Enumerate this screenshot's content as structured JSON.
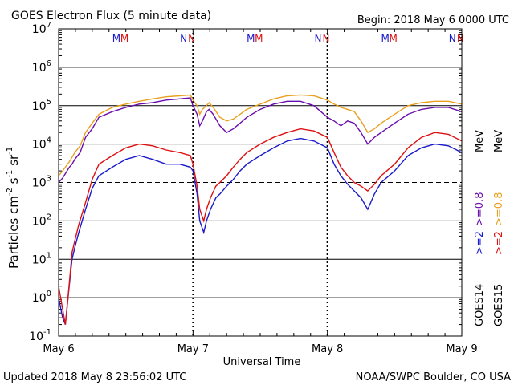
{
  "header": {
    "title": "GOES Electron Flux (5 minute data)",
    "begin": "Begin: 2018 May 6 0000 UTC"
  },
  "footer": {
    "updated": "Updated 2018 May  8 23:56:02 UTC",
    "credit": "NOAA/SWPC Boulder, CO USA"
  },
  "axes": {
    "xlabel": "Universal Time",
    "ylabel_parts": [
      "Particles cm",
      "-2",
      "s",
      "-1",
      "sr",
      "-1"
    ],
    "ylim": [
      0.1,
      10000000
    ],
    "yscale": "log",
    "yticks": [
      {
        "base": "10",
        "exp": "7",
        "value": 10000000
      },
      {
        "base": "10",
        "exp": "6",
        "value": 1000000
      },
      {
        "base": "10",
        "exp": "5",
        "value": 100000
      },
      {
        "base": "10",
        "exp": "4",
        "value": 10000
      },
      {
        "base": "10",
        "exp": "3",
        "value": 1000
      },
      {
        "base": "10",
        "exp": "2",
        "value": 100
      },
      {
        "base": "10",
        "exp": "1",
        "value": 10
      },
      {
        "base": "10",
        "exp": "0",
        "value": 1
      },
      {
        "base": "10",
        "exp": "-1",
        "value": 0.1
      }
    ],
    "xlim_days": [
      0,
      3
    ],
    "xticks": [
      {
        "label": "May 6",
        "day": 0
      },
      {
        "label": "May 7",
        "day": 1
      },
      {
        "label": "May 8",
        "day": 2
      },
      {
        "label": "May 9",
        "day": 3
      }
    ],
    "dashed_threshold": 1000
  },
  "markers": {
    "M_color": "#1a1acc",
    "M2_color": "#dd1111",
    "items": [
      {
        "label": "M",
        "day": 0.43,
        "color": "#1a1acc"
      },
      {
        "label": "M",
        "day": 0.49,
        "color": "#dd1111"
      },
      {
        "label": "N",
        "day": 0.93,
        "color": "#1a1acc"
      },
      {
        "label": "N",
        "day": 0.99,
        "color": "#dd1111"
      },
      {
        "label": "M",
        "day": 1.43,
        "color": "#1a1acc"
      },
      {
        "label": "M",
        "day": 1.49,
        "color": "#dd1111"
      },
      {
        "label": "N",
        "day": 1.93,
        "color": "#1a1acc"
      },
      {
        "label": "N",
        "day": 1.99,
        "color": "#dd1111"
      },
      {
        "label": "M",
        "day": 2.43,
        "color": "#1a1acc"
      },
      {
        "label": "M",
        "day": 2.49,
        "color": "#dd1111"
      },
      {
        "label": "N",
        "day": 2.93,
        "color": "#1a1acc"
      },
      {
        "label": "N",
        "day": 2.99,
        "color": "#dd1111"
      }
    ]
  },
  "legend": {
    "goes14": {
      "label": "GOES14",
      "entries": [
        {
          "label": ">=2",
          "color": "#1a1acc"
        },
        {
          "label": ">=0.8",
          "color": "#6a0dad"
        }
      ]
    },
    "goes15": {
      "label": "GOES15",
      "entries": [
        {
          "label": ">=2",
          "color": "#dd1111"
        },
        {
          "label": ">=0.8",
          "color": "#e8a020"
        }
      ]
    },
    "unit": "MeV"
  },
  "chart_data": {
    "type": "line",
    "x_unit": "days since 2018 May 6 0000 UTC",
    "series": [
      {
        "name": "GOES14 >=0.8 MeV",
        "color": "#6a0dad",
        "points": [
          [
            0.0,
            1000
          ],
          [
            0.03,
            1300
          ],
          [
            0.08,
            2500
          ],
          [
            0.1,
            3000
          ],
          [
            0.12,
            4000
          ],
          [
            0.16,
            6000
          ],
          [
            0.2,
            15000
          ],
          [
            0.25,
            25000
          ],
          [
            0.3,
            50000
          ],
          [
            0.4,
            70000
          ],
          [
            0.5,
            90000
          ],
          [
            0.6,
            110000
          ],
          [
            0.7,
            120000
          ],
          [
            0.8,
            140000
          ],
          [
            0.9,
            150000
          ],
          [
            0.98,
            160000
          ],
          [
            1.0,
            100000
          ],
          [
            1.03,
            60000
          ],
          [
            1.05,
            30000
          ],
          [
            1.07,
            40000
          ],
          [
            1.1,
            70000
          ],
          [
            1.12,
            80000
          ],
          [
            1.15,
            60000
          ],
          [
            1.2,
            30000
          ],
          [
            1.25,
            20000
          ],
          [
            1.3,
            25000
          ],
          [
            1.35,
            35000
          ],
          [
            1.4,
            50000
          ],
          [
            1.5,
            80000
          ],
          [
            1.6,
            110000
          ],
          [
            1.7,
            130000
          ],
          [
            1.8,
            130000
          ],
          [
            1.9,
            100000
          ],
          [
            2.0,
            50000
          ],
          [
            2.05,
            40000
          ],
          [
            2.1,
            30000
          ],
          [
            2.15,
            40000
          ],
          [
            2.2,
            35000
          ],
          [
            2.25,
            20000
          ],
          [
            2.3,
            10000
          ],
          [
            2.35,
            15000
          ],
          [
            2.4,
            20000
          ],
          [
            2.5,
            35000
          ],
          [
            2.6,
            60000
          ],
          [
            2.7,
            80000
          ],
          [
            2.8,
            90000
          ],
          [
            2.9,
            90000
          ],
          [
            3.0,
            70000
          ]
        ]
      },
      {
        "name": "GOES15 >=0.8 MeV",
        "color": "#e8a020",
        "points": [
          [
            0.0,
            1500
          ],
          [
            0.03,
            2000
          ],
          [
            0.08,
            3500
          ],
          [
            0.1,
            4500
          ],
          [
            0.12,
            6000
          ],
          [
            0.16,
            9000
          ],
          [
            0.2,
            20000
          ],
          [
            0.25,
            35000
          ],
          [
            0.3,
            60000
          ],
          [
            0.4,
            90000
          ],
          [
            0.5,
            110000
          ],
          [
            0.6,
            130000
          ],
          [
            0.7,
            150000
          ],
          [
            0.8,
            170000
          ],
          [
            0.9,
            180000
          ],
          [
            0.98,
            190000
          ],
          [
            1.0,
            140000
          ],
          [
            1.03,
            100000
          ],
          [
            1.05,
            60000
          ],
          [
            1.07,
            80000
          ],
          [
            1.1,
            100000
          ],
          [
            1.12,
            120000
          ],
          [
            1.15,
            90000
          ],
          [
            1.2,
            50000
          ],
          [
            1.25,
            40000
          ],
          [
            1.3,
            45000
          ],
          [
            1.35,
            60000
          ],
          [
            1.4,
            80000
          ],
          [
            1.5,
            110000
          ],
          [
            1.6,
            150000
          ],
          [
            1.7,
            180000
          ],
          [
            1.8,
            190000
          ],
          [
            1.9,
            180000
          ],
          [
            2.0,
            140000
          ],
          [
            2.05,
            110000
          ],
          [
            2.1,
            90000
          ],
          [
            2.15,
            80000
          ],
          [
            2.2,
            70000
          ],
          [
            2.25,
            40000
          ],
          [
            2.3,
            20000
          ],
          [
            2.35,
            25000
          ],
          [
            2.4,
            35000
          ],
          [
            2.5,
            60000
          ],
          [
            2.6,
            100000
          ],
          [
            2.7,
            120000
          ],
          [
            2.8,
            130000
          ],
          [
            2.9,
            130000
          ],
          [
            3.0,
            110000
          ]
        ]
      },
      {
        "name": "GOES14 >=2 MeV",
        "color": "#1a1acc",
        "points": [
          [
            0.0,
            1
          ],
          [
            0.03,
            0.3
          ],
          [
            0.05,
            0.2
          ],
          [
            0.07,
            1
          ],
          [
            0.1,
            10
          ],
          [
            0.12,
            20
          ],
          [
            0.15,
            50
          ],
          [
            0.2,
            200
          ],
          [
            0.25,
            700
          ],
          [
            0.3,
            1500
          ],
          [
            0.4,
            2500
          ],
          [
            0.5,
            4000
          ],
          [
            0.6,
            5000
          ],
          [
            0.7,
            4000
          ],
          [
            0.8,
            3000
          ],
          [
            0.9,
            3000
          ],
          [
            0.98,
            2500
          ],
          [
            1.0,
            2000
          ],
          [
            1.03,
            500
          ],
          [
            1.05,
            100
          ],
          [
            1.08,
            50
          ],
          [
            1.1,
            100
          ],
          [
            1.13,
            200
          ],
          [
            1.17,
            400
          ],
          [
            1.2,
            500
          ],
          [
            1.25,
            800
          ],
          [
            1.3,
            1200
          ],
          [
            1.35,
            2000
          ],
          [
            1.4,
            3000
          ],
          [
            1.5,
            5000
          ],
          [
            1.6,
            8000
          ],
          [
            1.7,
            12000
          ],
          [
            1.8,
            14000
          ],
          [
            1.9,
            12000
          ],
          [
            2.0,
            8000
          ],
          [
            2.05,
            3000
          ],
          [
            2.1,
            1500
          ],
          [
            2.15,
            900
          ],
          [
            2.2,
            600
          ],
          [
            2.25,
            400
          ],
          [
            2.3,
            200
          ],
          [
            2.35,
            500
          ],
          [
            2.4,
            1000
          ],
          [
            2.5,
            2000
          ],
          [
            2.6,
            5000
          ],
          [
            2.7,
            8000
          ],
          [
            2.8,
            10000
          ],
          [
            2.9,
            9000
          ],
          [
            3.0,
            6000
          ]
        ]
      },
      {
        "name": "GOES15 >=2 MeV",
        "color": "#dd1111",
        "points": [
          [
            0.0,
            2
          ],
          [
            0.03,
            0.5
          ],
          [
            0.05,
            0.2
          ],
          [
            0.07,
            1
          ],
          [
            0.1,
            15
          ],
          [
            0.12,
            30
          ],
          [
            0.15,
            80
          ],
          [
            0.2,
            300
          ],
          [
            0.25,
            1200
          ],
          [
            0.3,
            3000
          ],
          [
            0.4,
            5000
          ],
          [
            0.5,
            8000
          ],
          [
            0.6,
            10000
          ],
          [
            0.7,
            9000
          ],
          [
            0.8,
            7000
          ],
          [
            0.9,
            6000
          ],
          [
            0.98,
            5000
          ],
          [
            1.0,
            3000
          ],
          [
            1.03,
            800
          ],
          [
            1.05,
            200
          ],
          [
            1.08,
            100
          ],
          [
            1.1,
            200
          ],
          [
            1.13,
            400
          ],
          [
            1.17,
            800
          ],
          [
            1.2,
            1000
          ],
          [
            1.25,
            1500
          ],
          [
            1.3,
            2500
          ],
          [
            1.35,
            4000
          ],
          [
            1.4,
            6000
          ],
          [
            1.5,
            10000
          ],
          [
            1.6,
            15000
          ],
          [
            1.7,
            20000
          ],
          [
            1.8,
            25000
          ],
          [
            1.9,
            22000
          ],
          [
            2.0,
            15000
          ],
          [
            2.05,
            6000
          ],
          [
            2.1,
            2500
          ],
          [
            2.15,
            1500
          ],
          [
            2.2,
            1000
          ],
          [
            2.25,
            800
          ],
          [
            2.3,
            600
          ],
          [
            2.35,
            900
          ],
          [
            2.4,
            1500
          ],
          [
            2.5,
            3000
          ],
          [
            2.6,
            8000
          ],
          [
            2.7,
            15000
          ],
          [
            2.8,
            20000
          ],
          [
            2.9,
            18000
          ],
          [
            3.0,
            12000
          ]
        ]
      }
    ]
  }
}
